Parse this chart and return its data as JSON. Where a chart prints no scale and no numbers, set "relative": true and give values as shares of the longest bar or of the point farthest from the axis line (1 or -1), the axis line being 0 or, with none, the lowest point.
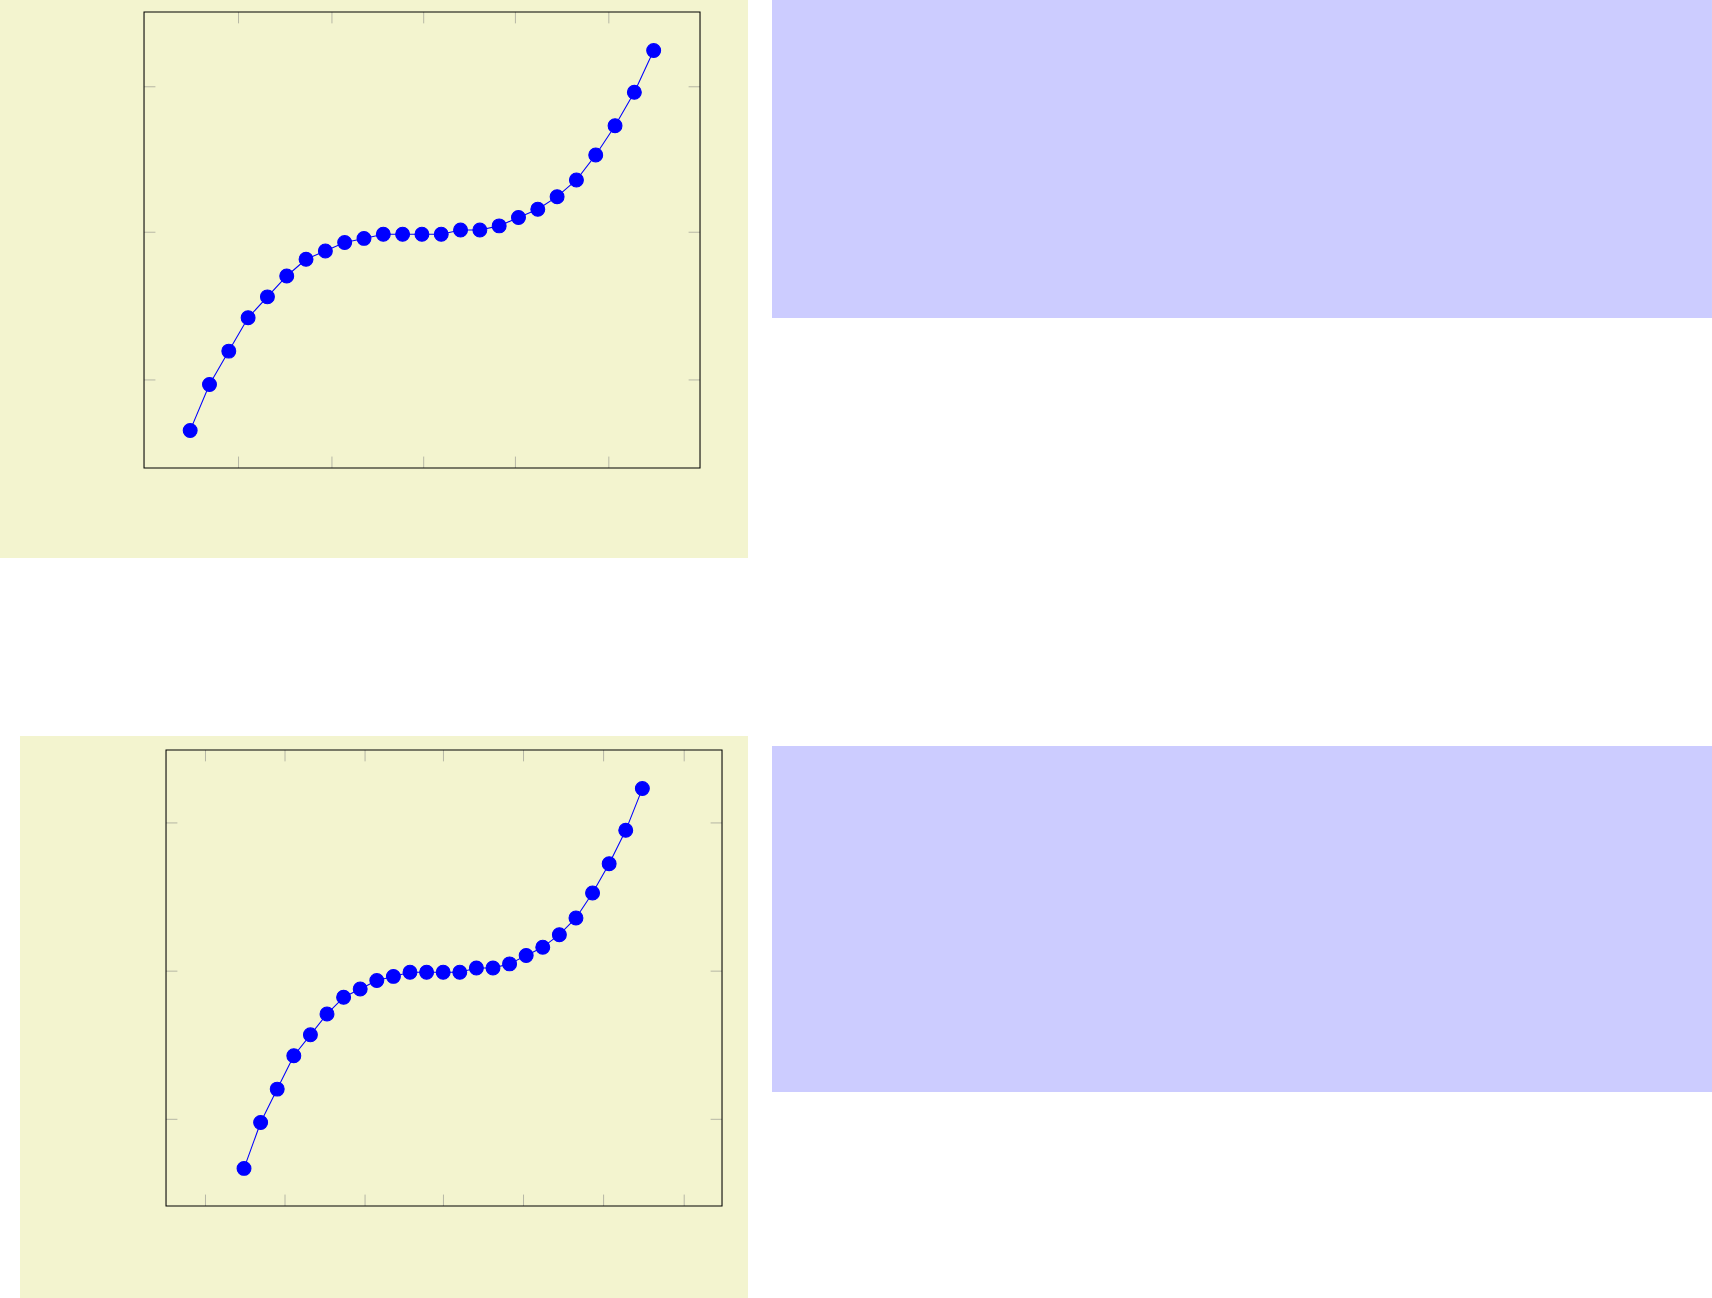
{
  "chart_data": [
    {
      "type": "line",
      "relative": true,
      "marker": "circle",
      "color": "#0000ff",
      "categories": [
        null,
        null,
        null,
        null,
        null,
        null,
        null,
        null,
        null,
        null,
        null,
        null,
        null,
        null,
        null,
        null,
        null,
        null,
        null,
        null,
        null,
        null,
        null,
        null,
        null
      ],
      "values": [
        0.09,
        0.2,
        0.28,
        0.36,
        0.41,
        0.46,
        0.5,
        0.52,
        0.54,
        0.55,
        0.56,
        0.56,
        0.56,
        0.56,
        0.57,
        0.57,
        0.58,
        0.6,
        0.62,
        0.65,
        0.69,
        0.75,
        0.82,
        0.9,
        1
      ]
    },
    {
      "type": "line",
      "relative": true,
      "marker": "circle",
      "color": "#0000ff",
      "categories": [
        null,
        null,
        null,
        null,
        null,
        null,
        null,
        null,
        null,
        null,
        null,
        null,
        null,
        null,
        null,
        null,
        null,
        null,
        null,
        null,
        null,
        null,
        null,
        null,
        null
      ],
      "values": [
        0.09,
        0.2,
        0.28,
        0.36,
        0.41,
        0.46,
        0.5,
        0.52,
        0.54,
        0.55,
        0.56,
        0.56,
        0.56,
        0.56,
        0.57,
        0.57,
        0.58,
        0.6,
        0.62,
        0.65,
        0.69,
        0.75,
        0.82,
        0.9,
        1
      ]
    }
  ]
}
